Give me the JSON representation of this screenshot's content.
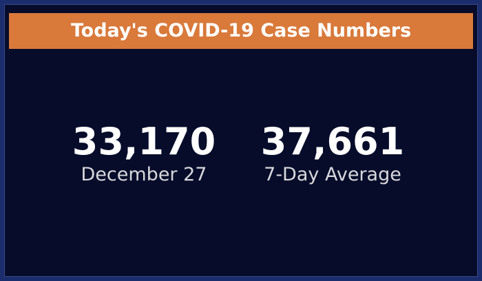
{
  "header": {
    "title": "Today's COVID-19 Case Numbers"
  },
  "stats": [
    {
      "value": "33,170",
      "label": "December 27"
    },
    {
      "value": "37,661",
      "label": "7-Day Average"
    }
  ]
}
